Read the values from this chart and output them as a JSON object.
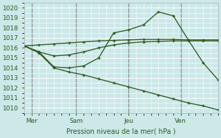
{
  "background_color": "#cce8e8",
  "plot_bg_color": "#cce8e8",
  "grid_color": "#ffffff",
  "line_color": "#2d5a1e",
  "vline_color": "#888888",
  "xlabel": "Pression niveau de la mer( hPa )",
  "ylim": [
    1009.5,
    1020.5
  ],
  "yticks": [
    1010,
    1011,
    1012,
    1013,
    1014,
    1015,
    1016,
    1017,
    1018,
    1019,
    1020
  ],
  "day_labels": [
    "Mer",
    "Sam",
    "Jeu",
    "Ven"
  ],
  "day_positions": [
    0.5,
    3.5,
    7.0,
    10.5
  ],
  "vline_positions": [
    0.5,
    3.5,
    7.0,
    10.5
  ],
  "xlim": [
    0,
    13
  ],
  "series1_x": [
    0,
    1,
    2,
    3,
    4,
    5,
    6,
    7,
    8,
    9,
    10,
    11,
    12,
    13
  ],
  "series1_y": [
    1016.2,
    1016.3,
    1016.4,
    1016.5,
    1016.6,
    1016.7,
    1016.75,
    1016.8,
    1016.85,
    1016.85,
    1016.85,
    1016.8,
    1016.8,
    1016.8
  ],
  "series2_x": [
    0,
    1,
    2,
    3,
    4,
    5,
    6,
    7,
    8,
    9,
    10,
    11,
    12,
    13
  ],
  "series2_y": [
    1016.2,
    1015.6,
    1015.2,
    1015.3,
    1015.6,
    1016.0,
    1016.3,
    1016.5,
    1016.6,
    1016.65,
    1016.7,
    1016.7,
    1016.7,
    1016.7
  ],
  "series3_x": [
    0,
    1,
    2,
    3,
    4,
    5,
    6,
    7,
    8,
    9,
    10,
    11,
    12,
    13
  ],
  "series3_y": [
    1016.2,
    1015.6,
    1014.1,
    1014.0,
    1014.2,
    1015.0,
    1017.5,
    1017.8,
    1018.3,
    1019.6,
    1019.2,
    1016.8,
    1014.5,
    1012.8
  ],
  "series4_x": [
    0,
    1,
    2,
    3,
    4,
    5,
    6,
    7,
    8,
    9,
    10,
    11,
    12,
    13
  ],
  "series4_y": [
    1016.2,
    1015.5,
    1014.0,
    1013.6,
    1013.3,
    1012.9,
    1012.5,
    1012.1,
    1011.7,
    1011.3,
    1010.9,
    1010.5,
    1010.2,
    1009.8
  ]
}
